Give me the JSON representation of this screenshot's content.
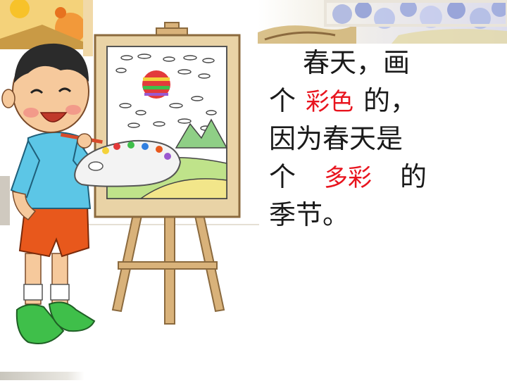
{
  "poem": {
    "line1": "春天，画",
    "line2_prefix": "个",
    "blank1": "彩色",
    "line2_suffix": "的，",
    "line3": "因为春天是",
    "line4_prefix": "个",
    "blank2": "多彩",
    "line4_suffix": "的",
    "line5": "季节。"
  },
  "colors": {
    "text": "#1a1a1a",
    "answer": "#e8141e",
    "shirt": "#5cc6e6",
    "shorts": "#e8581c",
    "shoes": "#3fbf4a",
    "easel": "#d9b27a",
    "balloon": "#e33b3b"
  },
  "icons": [
    "boy-painter",
    "easel",
    "paint-palette",
    "paintbrush",
    "sun-balloon",
    "flower-banner"
  ]
}
